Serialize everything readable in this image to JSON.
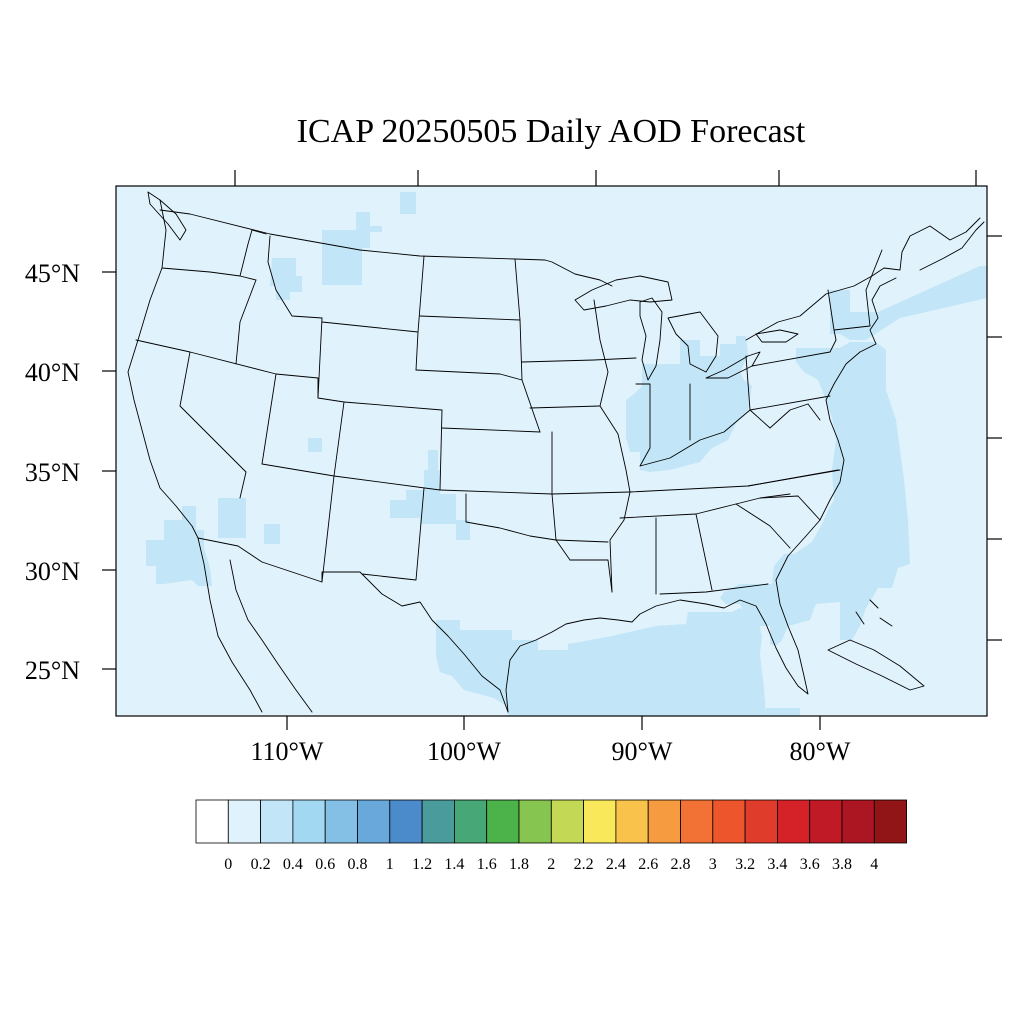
{
  "map": {
    "title": "ICAP 20250505 Daily AOD Forecast",
    "lat_labels": [
      "45°N",
      "40°N",
      "35°N",
      "30°N",
      "25°N"
    ],
    "lon_labels": [
      "110°W",
      "100°W",
      "90°W",
      "80°W"
    ],
    "lon_range_deg": [
      -119,
      -70
    ],
    "lat_range_deg": [
      22.5,
      49.2
    ],
    "colors": {
      "background": "#e0f2fb",
      "aod_0_2_0_4": "#c2e6f7",
      "boundary": "#000000"
    }
  },
  "colorbar": {
    "labels": [
      "0",
      "0.2",
      "0.4",
      "0.6",
      "0.8",
      "1",
      "1.2",
      "1.4",
      "1.6",
      "1.8",
      "2",
      "2.2",
      "2.4",
      "2.6",
      "2.8",
      "3",
      "3.2",
      "3.4",
      "3.6",
      "3.8",
      "4"
    ],
    "colors": [
      "#ffffff",
      "#e0f2fb",
      "#c2e6f7",
      "#a3d8f3",
      "#84c0e6",
      "#68a8da",
      "#4c8bcb",
      "#4a9b9c",
      "#47a776",
      "#4bb34a",
      "#86c54f",
      "#c3d855",
      "#f8e85a",
      "#f8c24b",
      "#f69b40",
      "#f27134",
      "#ed552d",
      "#e03c2b",
      "#d42228",
      "#bf1a25",
      "#ab1622",
      "#911517"
    ]
  }
}
